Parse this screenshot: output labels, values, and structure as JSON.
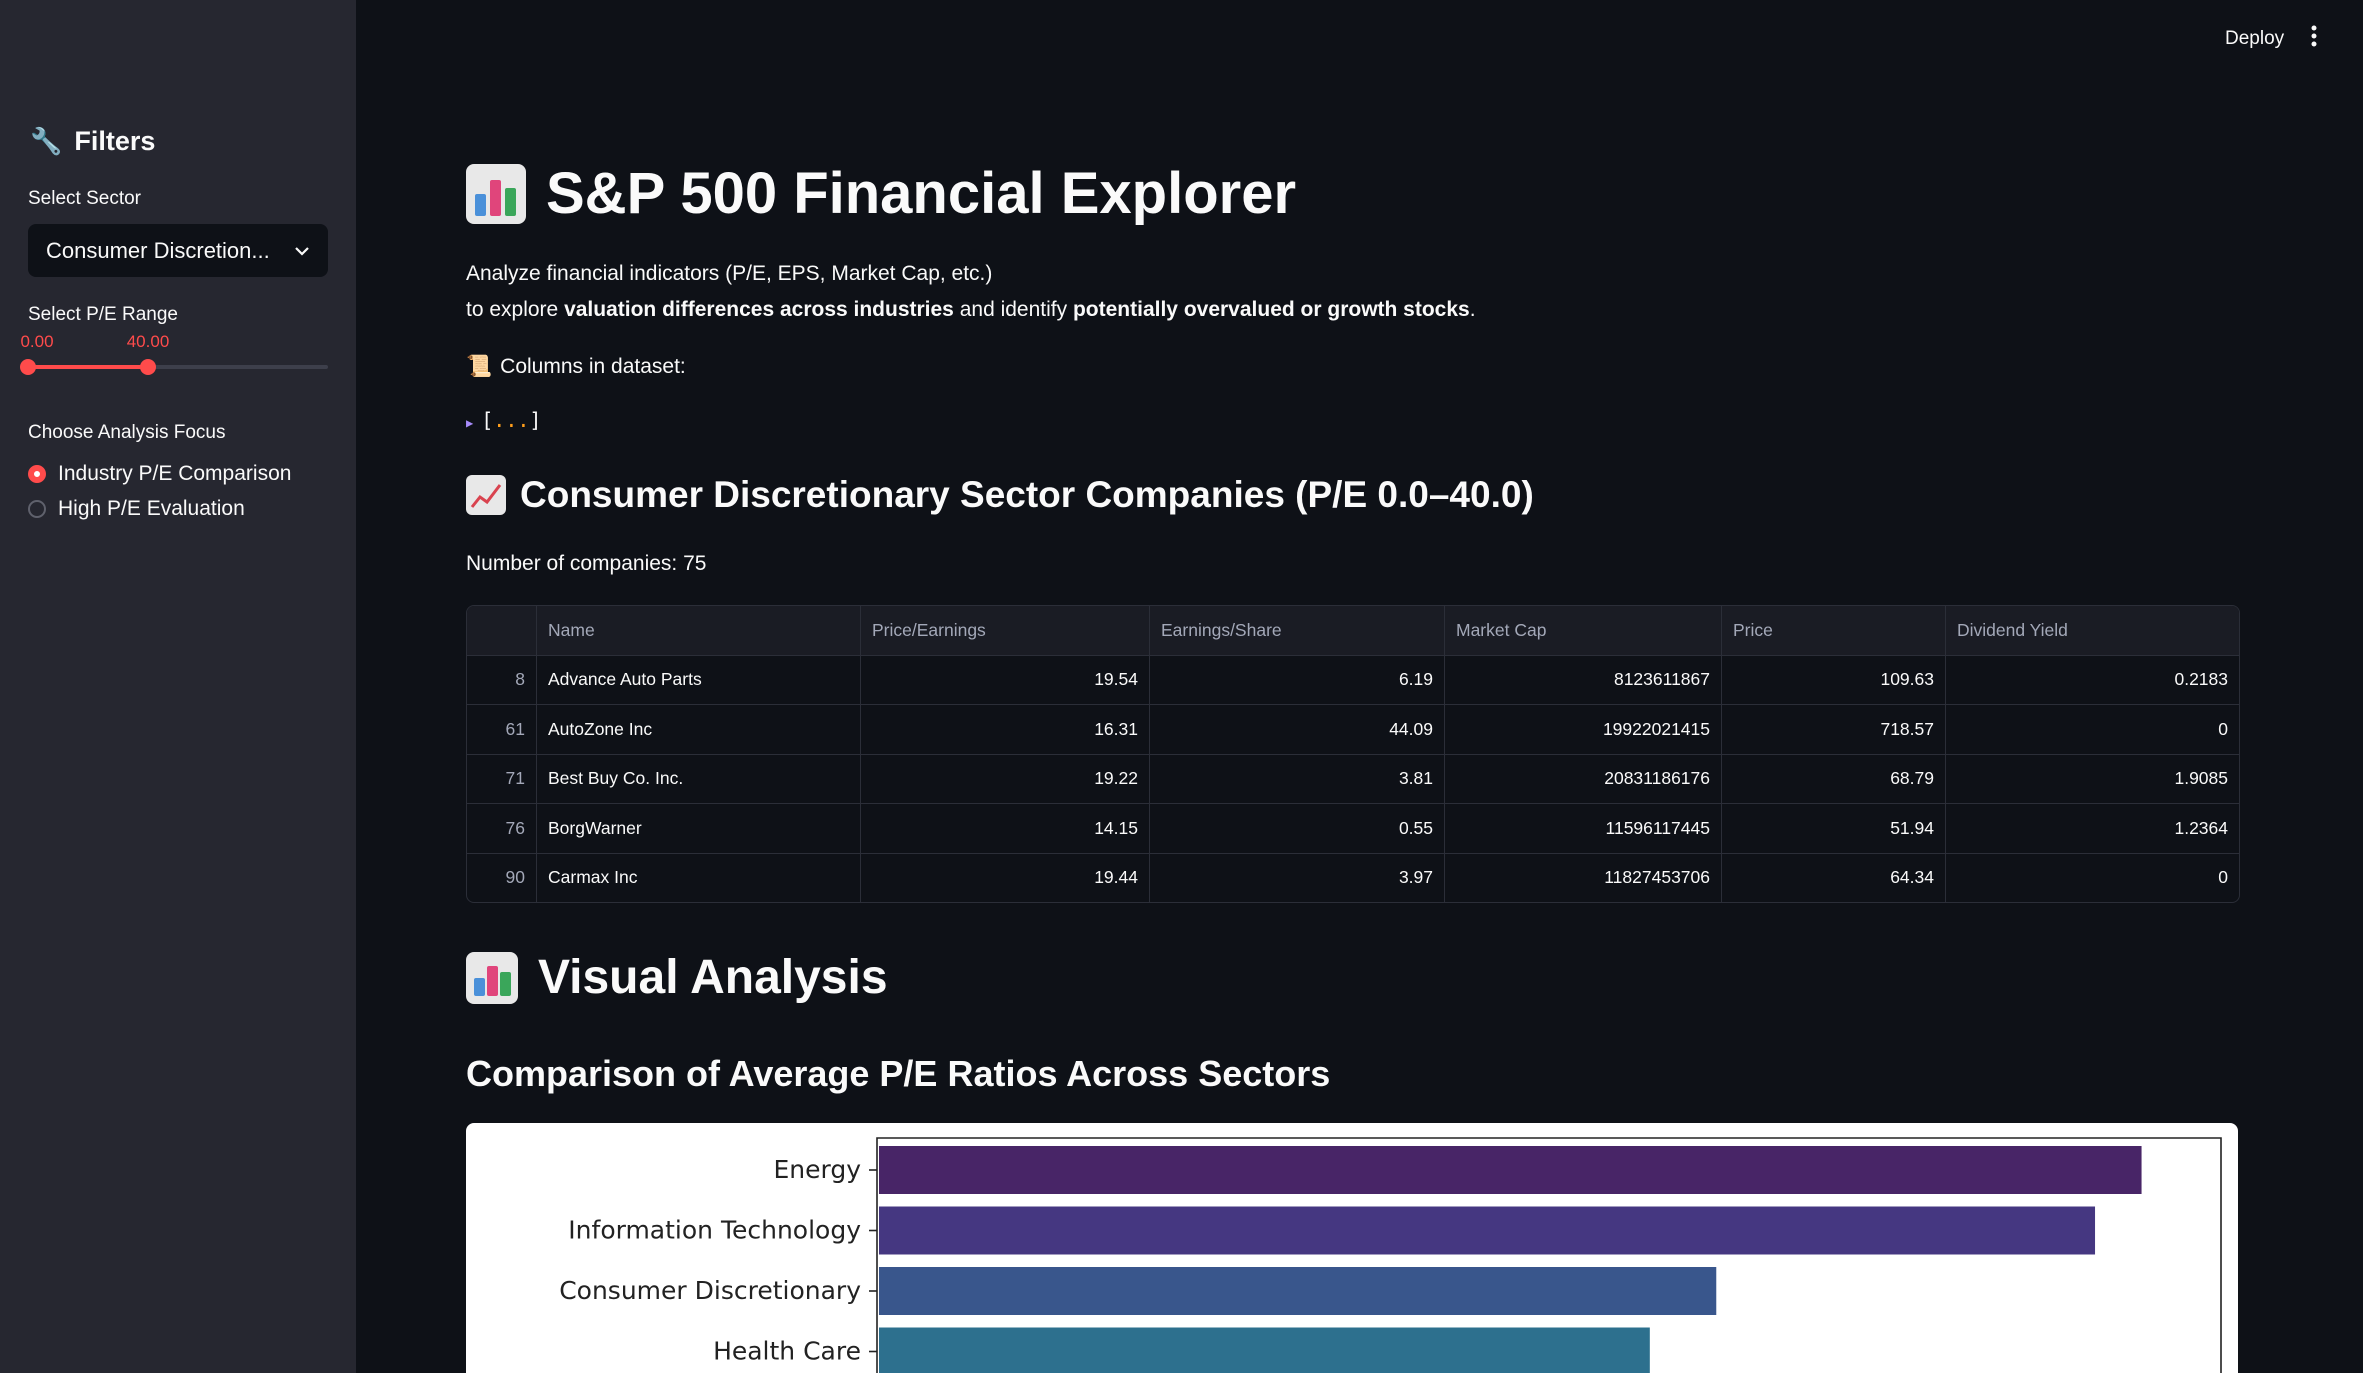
{
  "sidebar": {
    "filters_title": "Filters",
    "sector_label": "Select Sector",
    "sector_value": "Consumer Discretion...",
    "pe_label": "Select P/E Range",
    "pe_min": "0.00",
    "pe_max": "40.00",
    "pe_range_fraction": {
      "low": 0.0,
      "high": 0.4
    },
    "focus_label": "Choose Analysis Focus",
    "focus_options": [
      {
        "label": "Industry P/E Comparison",
        "selected": true
      },
      {
        "label": "High P/E Evaluation",
        "selected": false
      }
    ]
  },
  "header": {
    "deploy": "Deploy",
    "menu_icon": "kebab-menu-icon"
  },
  "main": {
    "title": "S&P 500 Financial Explorer",
    "intro_line1": "Analyze financial indicators (P/E, EPS, Market Cap, etc.)",
    "intro_line2_a": "to explore ",
    "intro_line2_b": "valuation differences across industries",
    "intro_line2_c": " and identify ",
    "intro_line2_d": "potentially overvalued or growth stocks",
    "intro_line2_e": ".",
    "columns_label": "Columns in dataset:",
    "expander_open": "[",
    "expander_dots": "...",
    "expander_close": "]",
    "sector_heading": "Consumer Discretionary Sector Companies (P/E 0.0–40.0)",
    "company_count": "Number of companies: 75",
    "table": {
      "columns": [
        "",
        "Name",
        "Price/Earnings",
        "Earnings/Share",
        "Market Cap",
        "Price",
        "Dividend Yield"
      ],
      "rows": [
        [
          "8",
          "Advance Auto Parts",
          "19.54",
          "6.19",
          "8123611867",
          "109.63",
          "0.2183"
        ],
        [
          "61",
          "AutoZone Inc",
          "16.31",
          "44.09",
          "19922021415",
          "718.57",
          "0"
        ],
        [
          "71",
          "Best Buy Co. Inc.",
          "19.22",
          "3.81",
          "20831186176",
          "68.79",
          "1.9085"
        ],
        [
          "76",
          "BorgWarner",
          "14.15",
          "0.55",
          "11596117445",
          "51.94",
          "1.2364"
        ],
        [
          "90",
          "Carmax Inc",
          "19.44",
          "3.97",
          "11827453706",
          "64.34",
          "0"
        ]
      ]
    },
    "visual_heading": "Visual Analysis",
    "chart_heading": "Comparison of Average P/E Ratios Across Sectors"
  },
  "chart_data": {
    "type": "bar",
    "orientation": "horizontal",
    "categories": [
      "Energy",
      "Information Technology",
      "Consumer Discretionary",
      "Health Care"
    ],
    "values": [
      95,
      91.5,
      63,
      58
    ],
    "xlim": [
      0,
      100
    ],
    "colors": [
      "#482567",
      "#453781",
      "#39568c",
      "#2d708e"
    ],
    "grid": false
  }
}
